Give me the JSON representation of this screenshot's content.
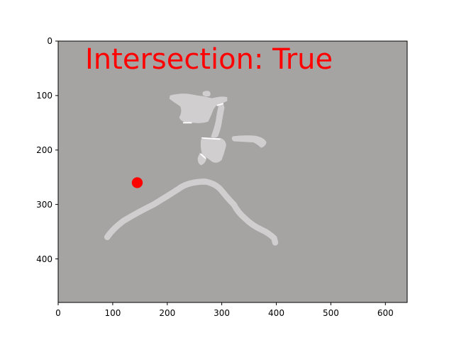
{
  "figure": {
    "overlay_text": "Intersection: True",
    "overlay_color": "#ff0000"
  },
  "image": {
    "width": 640,
    "height": 480,
    "background_color": "#a6a4a3",
    "stroke_color": "#d0cecf",
    "highlight_color": "#ffffff"
  },
  "marker": {
    "x": 145,
    "y": 260,
    "color": "#ff0000",
    "shape": "circle"
  },
  "axes": {
    "x_ticks": [
      0,
      100,
      200,
      300,
      400,
      500,
      600
    ],
    "y_ticks": [
      0,
      100,
      200,
      300,
      400
    ],
    "x_range": [
      0,
      640
    ],
    "y_range": [
      480,
      0
    ]
  }
}
